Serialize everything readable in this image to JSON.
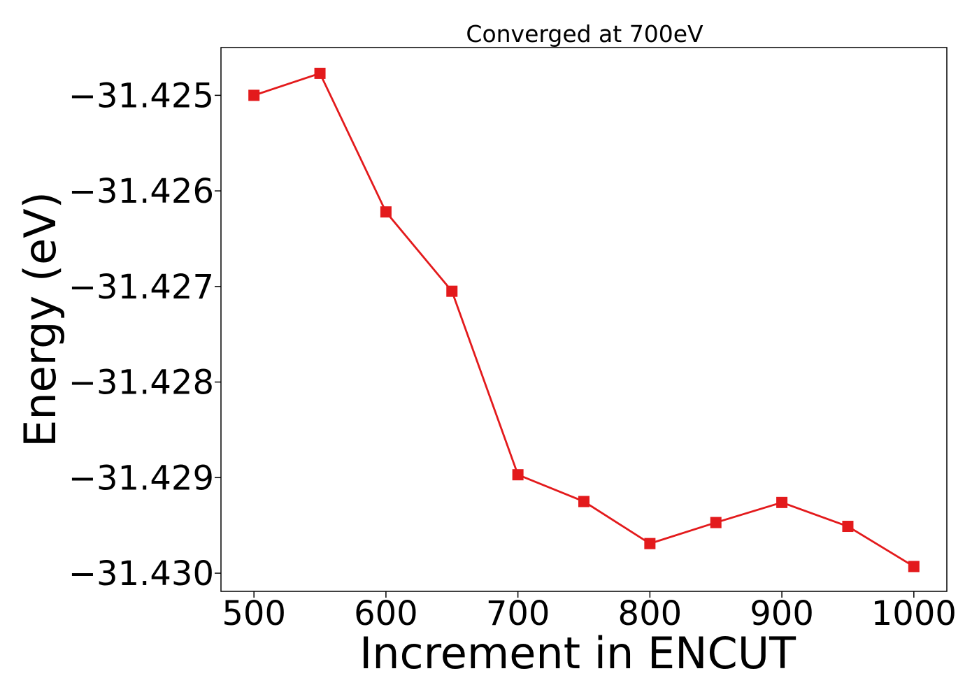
{
  "chart_data": {
    "type": "line",
    "title": "Converged at 700eV",
    "xlabel": "Increment in ENCUT",
    "ylabel": "Energy (eV)",
    "x": [
      500,
      550,
      600,
      650,
      700,
      750,
      800,
      850,
      900,
      950,
      1000
    ],
    "series": [
      {
        "values": [
          -31.425,
          -31.42477,
          -31.42622,
          -31.42705,
          -31.42897,
          -31.42925,
          -31.42969,
          -31.42947,
          -31.42926,
          -31.42951,
          -31.42993
        ],
        "color": "#e31a1c",
        "marker": "square"
      }
    ],
    "xlim": [
      475,
      1025
    ],
    "ylim": [
      -31.43019,
      -31.4245
    ],
    "x_ticks": [
      500,
      600,
      700,
      800,
      900,
      1000
    ],
    "x_tick_labels": [
      "500",
      "600",
      "700",
      "800",
      "900",
      "1000"
    ],
    "y_ticks": [
      -31.425,
      -31.426,
      -31.427,
      -31.428,
      -31.429,
      -31.43
    ],
    "y_tick_labels": [
      "−31.425",
      "−31.426",
      "−31.427",
      "−31.428",
      "−31.429",
      "−31.430"
    ],
    "grid": false,
    "legend": "none"
  }
}
